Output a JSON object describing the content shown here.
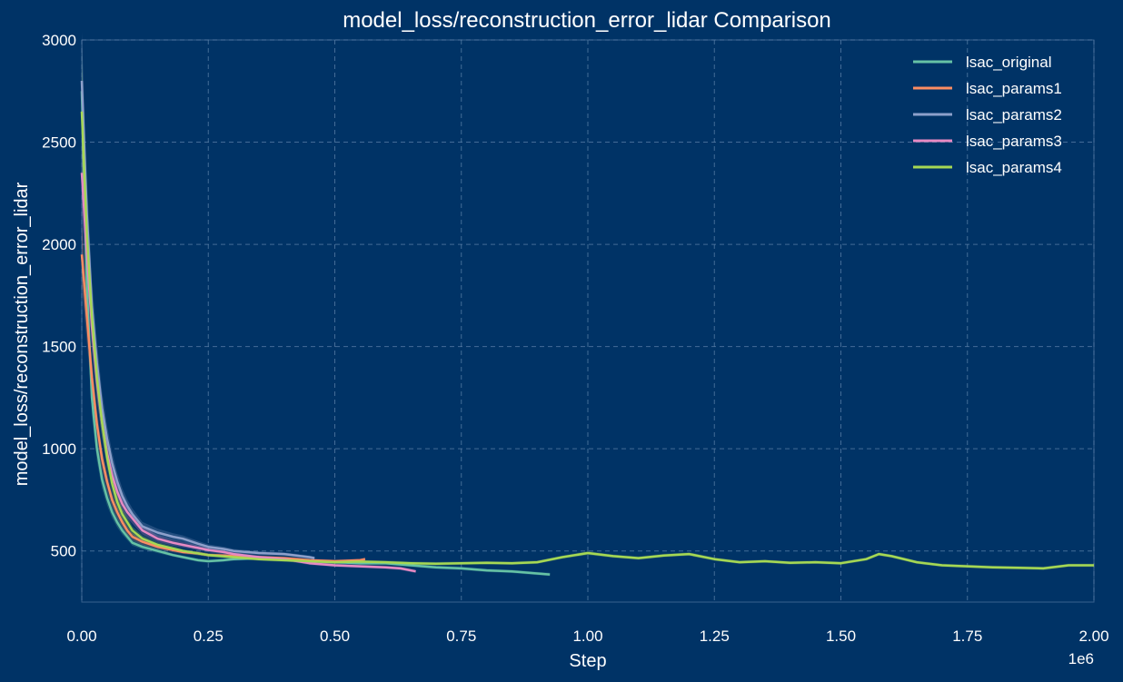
{
  "chart_data": {
    "type": "line",
    "title": "model_loss/reconstruction_error_lidar Comparison",
    "xlabel": "Step",
    "ylabel": "model_loss/reconstruction_error_lidar",
    "x_offset_label": "1e6",
    "xlim": [
      0,
      2000000
    ],
    "ylim": [
      250,
      3000
    ],
    "x_ticks": [
      0,
      250000,
      500000,
      750000,
      1000000,
      1250000,
      1500000,
      1750000,
      2000000
    ],
    "x_tick_labels": [
      "0.00",
      "0.25",
      "0.50",
      "0.75",
      "1.00",
      "1.25",
      "1.50",
      "1.75",
      "2.00"
    ],
    "y_ticks": [
      500,
      1000,
      1500,
      2000,
      2500,
      3000
    ],
    "y_tick_labels": [
      "500",
      "1000",
      "1500",
      "2000",
      "2500",
      "3000"
    ],
    "grid": true,
    "legend_position": "top-right",
    "shaded_band": true,
    "series": [
      {
        "name": "lsac_original",
        "color": "#66c2a5",
        "x": [
          0,
          10000,
          20000,
          30000,
          40000,
          50000,
          60000,
          70000,
          80000,
          90000,
          100000,
          120000,
          150000,
          180000,
          200000,
          230000,
          250000,
          280000,
          300000,
          350000,
          400000,
          450000,
          500000,
          550000,
          600000,
          650000,
          700000,
          750000,
          800000,
          850000,
          900000,
          925000
        ],
        "y": [
          2750,
          1800,
          1250,
          1000,
          850,
          760,
          690,
          640,
          600,
          570,
          540,
          520,
          500,
          480,
          470,
          455,
          450,
          455,
          460,
          465,
          460,
          450,
          445,
          440,
          440,
          430,
          420,
          415,
          405,
          400,
          390,
          385
        ]
      },
      {
        "name": "lsac_params1",
        "color": "#fc8d62",
        "x": [
          0,
          10000,
          20000,
          30000,
          40000,
          50000,
          60000,
          70000,
          80000,
          90000,
          100000,
          120000,
          150000,
          180000,
          200000,
          230000,
          250000,
          280000,
          300000,
          350000,
          400000,
          450000,
          500000,
          550000,
          560000
        ],
        "y": [
          1950,
          1650,
          1350,
          1120,
          950,
          840,
          750,
          690,
          640,
          600,
          570,
          545,
          520,
          505,
          495,
          488,
          480,
          478,
          475,
          470,
          465,
          455,
          450,
          455,
          460
        ]
      },
      {
        "name": "lsac_params2",
        "color": "#8da0cb",
        "x": [
          0,
          10000,
          20000,
          30000,
          40000,
          50000,
          60000,
          70000,
          80000,
          90000,
          100000,
          120000,
          150000,
          180000,
          200000,
          230000,
          250000,
          280000,
          300000,
          350000,
          400000,
          450000,
          460000
        ],
        "y": [
          2800,
          2150,
          1700,
          1420,
          1200,
          1050,
          930,
          840,
          770,
          720,
          680,
          620,
          590,
          570,
          560,
          535,
          520,
          510,
          500,
          490,
          485,
          470,
          465
        ]
      },
      {
        "name": "lsac_params3",
        "color": "#e78ac3",
        "x": [
          0,
          10000,
          20000,
          30000,
          40000,
          50000,
          60000,
          70000,
          80000,
          90000,
          100000,
          120000,
          150000,
          180000,
          200000,
          230000,
          250000,
          280000,
          300000,
          350000,
          400000,
          450000,
          500000,
          550000,
          600000,
          630000,
          660000
        ],
        "y": [
          2350,
          1950,
          1600,
          1330,
          1130,
          980,
          870,
          790,
          730,
          690,
          660,
          600,
          560,
          540,
          530,
          515,
          505,
          495,
          485,
          470,
          460,
          440,
          430,
          425,
          420,
          415,
          400
        ]
      },
      {
        "name": "lsac_params4",
        "color": "#a6d854",
        "x": [
          0,
          10000,
          20000,
          30000,
          40000,
          50000,
          60000,
          70000,
          80000,
          90000,
          100000,
          120000,
          150000,
          200000,
          250000,
          300000,
          350000,
          400000,
          450000,
          500000,
          550000,
          600000,
          650000,
          700000,
          750000,
          800000,
          850000,
          900000,
          950000,
          1000000,
          1050000,
          1100000,
          1150000,
          1200000,
          1250000,
          1300000,
          1350000,
          1400000,
          1450000,
          1500000,
          1550000,
          1575000,
          1600000,
          1650000,
          1700000,
          1750000,
          1800000,
          1850000,
          1900000,
          1950000,
          2000000
        ],
        "y": [
          2650,
          2050,
          1650,
          1350,
          1130,
          960,
          830,
          740,
          680,
          640,
          600,
          560,
          530,
          500,
          480,
          470,
          460,
          455,
          450,
          445,
          448,
          445,
          440,
          438,
          440,
          442,
          440,
          445,
          470,
          490,
          475,
          465,
          478,
          485,
          460,
          445,
          450,
          442,
          445,
          440,
          460,
          485,
          475,
          445,
          430,
          425,
          420,
          418,
          415,
          430,
          430
        ]
      }
    ]
  }
}
